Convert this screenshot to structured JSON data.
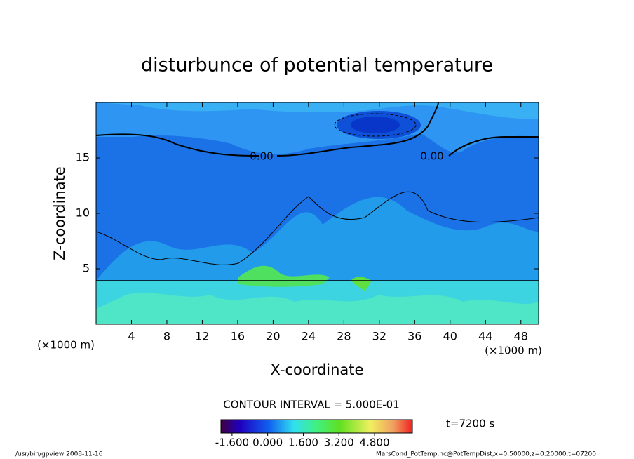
{
  "chart_data": {
    "type": "contour",
    "title": "disturbunce of potential temperature",
    "xlabel": "X-coordinate",
    "ylabel": "Z-coordinate",
    "x_unit": "(×1000 m)",
    "y_unit": "(×1000 m)",
    "xlim": [
      0,
      50
    ],
    "ylim": [
      0,
      20
    ],
    "xticks": [
      4,
      8,
      12,
      16,
      20,
      24,
      28,
      32,
      36,
      40,
      44,
      48
    ],
    "yticks": [
      5,
      10,
      15
    ],
    "annotations": [
      "0.00",
      "0.00"
    ],
    "contour_interval": "CONTOUR INTERVAL = 5.000E-01",
    "time_label": "t=7200 s",
    "colorbar": {
      "clim": [
        -2.1,
        6.5
      ],
      "ticks": [
        {
          "value": -1.6,
          "label": "-1.600"
        },
        {
          "value": 0,
          "label": "0.000"
        },
        {
          "value": 1.6,
          "label": "1.600"
        },
        {
          "value": 3.2,
          "label": "3.200"
        },
        {
          "value": 4.8,
          "label": "4.800"
        }
      ]
    },
    "footer_left": "/usr/bin/gpview   2008-11-16",
    "footer_right": "MarsCond_PotTemp.nc@PotTempDist,x=0:50000,z=0:20000,t=07200"
  }
}
